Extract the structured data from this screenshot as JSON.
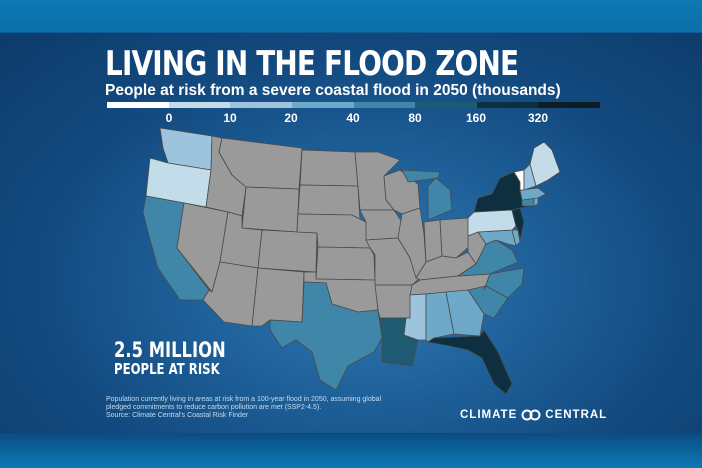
{
  "title": "LIVING IN THE FLOOD ZONE",
  "subtitle": "People at risk from a severe coastal flood in 2050 (thousands)",
  "legend": {
    "ticks": [
      "0",
      "10",
      "20",
      "40",
      "80",
      "160",
      "320"
    ],
    "colors": [
      "#ffffff",
      "#c3dcea",
      "#9ec4dd",
      "#6fa9c9",
      "#3f86a8",
      "#1e5b72",
      "#0d2f3f",
      "#0d1d26"
    ],
    "no_data_color": "#9a9a9a"
  },
  "stat": {
    "value": "2.5 MILLION",
    "label": "PEOPLE AT RISK"
  },
  "footnote": [
    "Population currently living in areas at risk from a 100-year flood in 2050, assuming global",
    "pledged commitments to reduce carbon pollution are met (SSP2-4.5).",
    "Source: Climate Central's Coastal Risk Finder"
  ],
  "brand": {
    "left": "CLIMATE",
    "right": "CENTRAL"
  },
  "states": {
    "WA": {
      "bin": 2
    },
    "OR": {
      "bin": 1
    },
    "CA": {
      "bin": 4
    },
    "TX": {
      "bin": 4
    },
    "LA": {
      "bin": 5
    },
    "MS": {
      "bin": 2
    },
    "AL": {
      "bin": 3
    },
    "GA": {
      "bin": 3
    },
    "FL": {
      "bin": 6
    },
    "SC": {
      "bin": 4
    },
    "NC": {
      "bin": 4
    },
    "VA": {
      "bin": 4
    },
    "MD": {
      "bin": 3
    },
    "DE": {
      "bin": 3
    },
    "NJ": {
      "bin": 6
    },
    "PA": {
      "bin": 1
    },
    "NY": {
      "bin": 6
    },
    "CT": {
      "bin": 4
    },
    "RI": {
      "bin": 3
    },
    "MA": {
      "bin": 3
    },
    "NH": {
      "bin": 2
    },
    "ME": {
      "bin": 1
    },
    "VT": {
      "bin": 0
    },
    "MI": {
      "bin": 4
    },
    "gray_states": [
      "NV",
      "ID",
      "MT",
      "WY",
      "UT",
      "AZ",
      "CO",
      "NM",
      "ND",
      "SD",
      "NE",
      "KS",
      "OK",
      "MN",
      "IA",
      "MO",
      "AR",
      "WI",
      "IL",
      "IN",
      "OH",
      "KY",
      "TN",
      "WV"
    ]
  }
}
